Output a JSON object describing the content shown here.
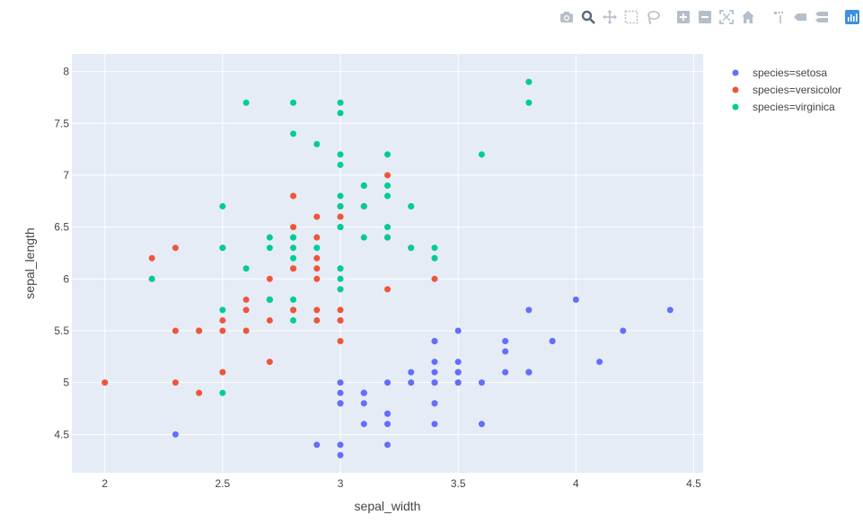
{
  "modebar": {
    "buttons": [
      {
        "name": "camera-icon",
        "label": "Download plot as a png"
      },
      {
        "name": "zoom-icon",
        "label": "Zoom",
        "active": true
      },
      {
        "name": "pan-icon",
        "label": "Pan"
      },
      {
        "name": "box-select-icon",
        "label": "Box Select"
      },
      {
        "name": "lasso-select-icon",
        "label": "Lasso Select"
      },
      {
        "name": "zoom-in-icon",
        "label": "Zoom in"
      },
      {
        "name": "zoom-out-icon",
        "label": "Zoom out"
      },
      {
        "name": "autoscale-icon",
        "label": "Autoscale"
      },
      {
        "name": "reset-axes-icon",
        "label": "Reset axes"
      },
      {
        "name": "spike-lines-icon",
        "label": "Toggle Spike Lines"
      },
      {
        "name": "hover-closest-icon",
        "label": "Show closest data on hover"
      },
      {
        "name": "hover-compare-icon",
        "label": "Compare data on hover"
      },
      {
        "name": "plotly-logo-icon",
        "label": "Produced with Plotly"
      }
    ],
    "icon_color": "#b5bfc9",
    "active_color": "#5a6a7a",
    "logo_color": "#3f8fe0"
  },
  "chart_data": {
    "type": "scatter",
    "title": "",
    "xlabel": "sepal_width",
    "ylabel": "sepal_length",
    "xlim": [
      1.86,
      4.54
    ],
    "ylim": [
      4.13,
      8.17
    ],
    "xticks": [
      "2",
      "2.5",
      "3",
      "3.5",
      "4",
      "4.5"
    ],
    "xtick_values": [
      2,
      2.5,
      3,
      3.5,
      4,
      4.5
    ],
    "yticks": [
      "4.5",
      "5",
      "5.5",
      "6",
      "6.5",
      "7",
      "7.5",
      "8"
    ],
    "ytick_values": [
      4.5,
      5,
      5.5,
      6,
      6.5,
      7,
      7.5,
      8
    ],
    "grid": true,
    "plot_background": "#e5ecf6",
    "legend_position": "top-right",
    "series": [
      {
        "name": "species=setosa",
        "color": "#636efa",
        "x": [
          3.5,
          3.0,
          3.2,
          3.1,
          3.6,
          3.9,
          3.4,
          3.4,
          2.9,
          3.1,
          3.7,
          3.4,
          3.0,
          3.0,
          4.0,
          4.4,
          3.9,
          3.5,
          3.8,
          3.8,
          3.4,
          3.7,
          3.6,
          3.3,
          3.4,
          3.0,
          3.4,
          3.5,
          3.4,
          3.2,
          3.1,
          3.4,
          4.1,
          4.2,
          3.1,
          3.2,
          3.5,
          3.1,
          3.0,
          3.4,
          3.5,
          2.3,
          3.2,
          3.5,
          3.8,
          3.0,
          3.8,
          3.2,
          3.7,
          3.3
        ],
        "y": [
          5.1,
          4.9,
          4.7,
          4.6,
          5.0,
          5.4,
          4.6,
          5.0,
          4.4,
          4.9,
          5.4,
          4.8,
          4.8,
          4.3,
          5.8,
          5.7,
          5.4,
          5.1,
          5.7,
          5.1,
          5.4,
          5.1,
          4.6,
          5.1,
          4.8,
          5.0,
          5.0,
          5.2,
          5.2,
          4.7,
          4.8,
          5.4,
          5.2,
          5.5,
          4.9,
          5.0,
          5.5,
          4.9,
          4.4,
          5.1,
          5.0,
          4.5,
          4.4,
          5.0,
          5.1,
          4.8,
          5.1,
          4.6,
          5.3,
          5.0
        ]
      },
      {
        "name": "species=versicolor",
        "color": "#ef553b",
        "x": [
          3.2,
          3.2,
          3.1,
          2.3,
          2.8,
          2.8,
          3.3,
          2.4,
          2.9,
          2.7,
          2.0,
          3.0,
          2.2,
          2.9,
          2.9,
          3.1,
          3.0,
          2.7,
          2.2,
          2.5,
          3.2,
          2.8,
          2.5,
          2.8,
          2.9,
          3.0,
          2.8,
          3.0,
          2.9,
          2.6,
          2.4,
          2.4,
          2.7,
          2.7,
          3.0,
          3.4,
          3.1,
          2.3,
          3.0,
          2.5,
          2.6,
          3.0,
          2.6,
          2.3,
          2.7,
          3.0,
          2.9,
          2.9,
          2.5,
          2.8
        ],
        "y": [
          7.0,
          6.4,
          6.9,
          5.5,
          6.5,
          5.7,
          6.3,
          4.9,
          6.6,
          5.2,
          5.0,
          5.9,
          6.0,
          6.1,
          5.6,
          6.7,
          5.6,
          5.8,
          6.2,
          5.6,
          5.9,
          6.1,
          6.3,
          6.1,
          6.4,
          6.6,
          6.8,
          6.7,
          6.0,
          5.7,
          5.5,
          5.5,
          5.8,
          6.0,
          5.4,
          6.0,
          6.7,
          6.3,
          5.6,
          5.5,
          5.5,
          6.1,
          5.8,
          5.0,
          5.6,
          5.7,
          5.7,
          6.2,
          5.1,
          5.7
        ]
      },
      {
        "name": "species=virginica",
        "color": "#00cc96",
        "x": [
          3.3,
          2.7,
          3.0,
          2.9,
          3.0,
          3.0,
          2.5,
          2.9,
          2.5,
          3.6,
          3.2,
          2.7,
          3.0,
          2.5,
          2.8,
          3.2,
          3.0,
          3.8,
          2.6,
          2.2,
          3.2,
          2.8,
          2.8,
          2.7,
          3.3,
          3.2,
          2.8,
          3.0,
          2.8,
          3.0,
          2.8,
          3.8,
          2.8,
          2.8,
          2.6,
          3.0,
          3.4,
          3.1,
          3.0,
          3.1,
          3.1,
          3.1,
          2.7,
          3.2,
          3.3,
          3.0,
          2.5,
          3.0,
          3.4,
          3.0
        ],
        "y": [
          6.3,
          5.8,
          7.1,
          6.3,
          6.5,
          7.6,
          4.9,
          7.3,
          6.7,
          7.2,
          6.5,
          6.4,
          6.8,
          5.7,
          5.8,
          6.4,
          6.5,
          7.7,
          7.7,
          6.0,
          6.9,
          5.6,
          7.7,
          6.3,
          6.7,
          7.2,
          6.2,
          6.1,
          6.4,
          7.2,
          7.4,
          7.9,
          6.4,
          6.3,
          6.1,
          7.7,
          6.3,
          6.4,
          6.0,
          6.9,
          6.7,
          6.9,
          5.8,
          6.8,
          6.7,
          6.7,
          6.3,
          6.5,
          6.2,
          5.9
        ]
      }
    ]
  }
}
